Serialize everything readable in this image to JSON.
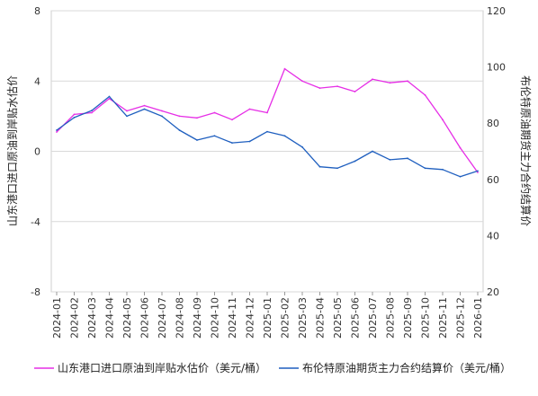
{
  "chart_data": {
    "type": "line",
    "x": [
      "2024-01",
      "2024-02",
      "2024-03",
      "2024-04",
      "2024-05",
      "2024-06",
      "2024-07",
      "2024-08",
      "2024-09",
      "2024-10",
      "2024-11",
      "2024-12",
      "2025-01",
      "2025-02",
      "2025-03",
      "2025-04",
      "2025-05",
      "2025-06",
      "2025-07",
      "2025-08",
      "2025-09",
      "2025-10",
      "2025-11",
      "2025-12",
      "2026-01"
    ],
    "series": [
      {
        "name": "山东港口进口原油到岸贴水估价（美元/桶）",
        "axis": "left",
        "color": "#E62EE6",
        "values": [
          1.1,
          2.1,
          2.2,
          3.0,
          2.3,
          2.6,
          2.3,
          2.0,
          1.9,
          2.2,
          1.8,
          2.4,
          2.2,
          4.7,
          4.0,
          3.6,
          3.7,
          3.4,
          4.1,
          3.9,
          4.0,
          3.2,
          1.8,
          0.2,
          -1.2
        ]
      },
      {
        "name": "布伦特原油期货主力合约结算价（美元/桶）",
        "axis": "right",
        "color": "#1F5FBF",
        "values": [
          77.5,
          82.0,
          84.5,
          89.5,
          82.5,
          85.0,
          82.5,
          77.5,
          74.0,
          75.5,
          73.0,
          73.5,
          77.0,
          75.5,
          71.5,
          64.5,
          64.0,
          66.5,
          70.0,
          67.0,
          67.5,
          64.0,
          63.5,
          61.0,
          63.0
        ]
      }
    ],
    "y_left": {
      "min": -8,
      "max": 8,
      "ticks": [
        "8",
        "4",
        "0",
        "-4",
        "-8"
      ],
      "label": "山东港口进口原油到岸贴水估价"
    },
    "y_right": {
      "min": 20,
      "max": 120,
      "ticks": [
        "120",
        "100",
        "80",
        "60",
        "40",
        "20"
      ],
      "label": "布伦特原油期货主力合约结算价"
    },
    "grid": true,
    "legend": "bottom"
  }
}
